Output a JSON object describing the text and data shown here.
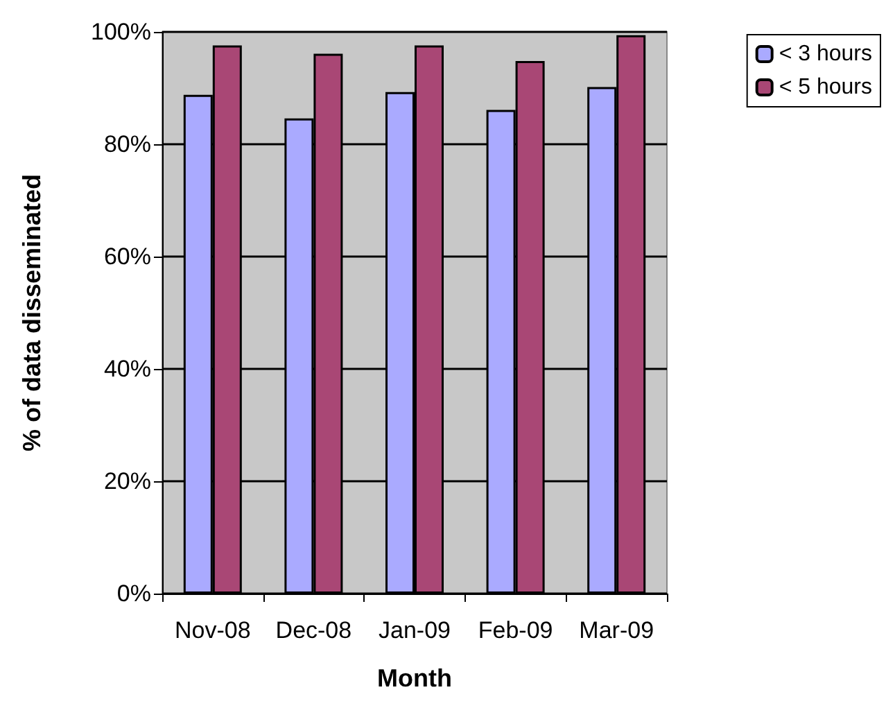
{
  "chart_data": {
    "type": "bar",
    "xlabel": "Month",
    "ylabel": "% of data disseminated",
    "categories": [
      "Nov-08",
      "Dec-08",
      "Jan-09",
      "Feb-09",
      "Mar-09"
    ],
    "series": [
      {
        "name": "< 3 hours",
        "color": "#aaaaff",
        "values": [
          88.8,
          84.6,
          89.3,
          86.1,
          90.2
        ]
      },
      {
        "name": "< 5 hours",
        "color": "#a94775",
        "values": [
          97.6,
          96.1,
          97.6,
          94.8,
          99.4
        ]
      }
    ],
    "ylim": [
      0,
      100
    ],
    "yticks": [
      {
        "value": 0,
        "label": "0%"
      },
      {
        "value": 20,
        "label": "20%"
      },
      {
        "value": 40,
        "label": "40%"
      },
      {
        "value": 60,
        "label": "60%"
      },
      {
        "value": 80,
        "label": "80%"
      },
      {
        "value": 100,
        "label": "100%"
      }
    ],
    "grid": "y",
    "legend": "top right"
  }
}
